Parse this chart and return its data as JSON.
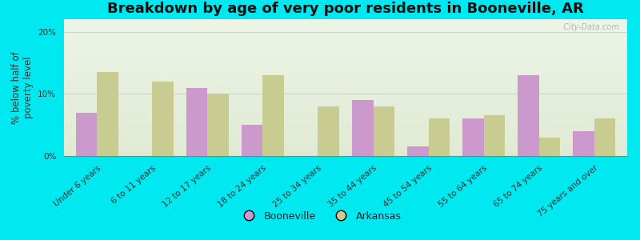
{
  "title": "Breakdown by age of very poor residents in Booneville, AR",
  "ylabel": "% below half of\npoverty level",
  "categories": [
    "Under 6 years",
    "6 to 11 years",
    "12 to 17 years",
    "18 to 24 years",
    "25 to 34 years",
    "35 to 44 years",
    "45 to 54 years",
    "55 to 64 years",
    "65 to 74 years",
    "75 years and over"
  ],
  "booneville": [
    7.0,
    0.0,
    11.0,
    5.0,
    0.0,
    9.0,
    1.5,
    6.0,
    13.0,
    4.0
  ],
  "arkansas": [
    13.5,
    12.0,
    10.0,
    13.0,
    8.0,
    8.0,
    6.0,
    6.5,
    3.0,
    6.0
  ],
  "booneville_color": "#cc99cc",
  "arkansas_color": "#c8cc90",
  "background_outer": "#00e8f0",
  "ylim": [
    0,
    22
  ],
  "yticks": [
    0,
    10,
    20
  ],
  "ytick_labels": [
    "0%",
    "10%",
    "20%"
  ],
  "bar_width": 0.38,
  "title_fontsize": 13,
  "axis_label_fontsize": 8.5,
  "tick_label_fontsize": 7.5,
  "legend_fontsize": 9,
  "watermark": "  City-Data.com"
}
